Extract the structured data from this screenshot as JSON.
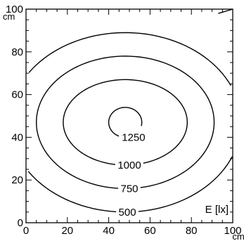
{
  "chart_data": {
    "type": "contour",
    "x_unit": "cm",
    "y_unit": "cm",
    "xlim": [
      0,
      100
    ],
    "ylim": [
      0,
      100
    ],
    "x_ticks": [
      0,
      20,
      40,
      60,
      80,
      100
    ],
    "y_ticks": [
      0,
      20,
      40,
      60,
      80,
      100
    ],
    "quantity_label": "E [lx]",
    "center": [
      48,
      47
    ],
    "contours": [
      {
        "level": 1250,
        "label": "1250",
        "rx": 8,
        "ry": 7,
        "label_at": [
          52,
          40
        ]
      },
      {
        "level": 1000,
        "label": "1000",
        "rx": 30,
        "ry": 20,
        "label_at": [
          50,
          27
        ]
      },
      {
        "level": 750,
        "label": "750",
        "rx": 43,
        "ry": 31,
        "label_at": [
          50,
          16
        ]
      },
      {
        "level": 500,
        "label": "500",
        "rx": 56,
        "ry": 42,
        "label_at": [
          49,
          5
        ]
      }
    ],
    "corner_contours": [
      {
        "level": 500,
        "from": [
          93,
          98
        ],
        "to": [
          100,
          100
        ]
      }
    ],
    "grid": false
  }
}
